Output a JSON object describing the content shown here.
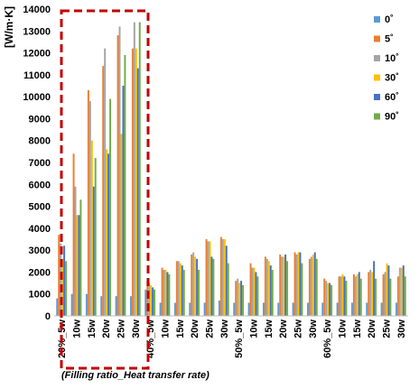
{
  "chart_data": {
    "type": "bar",
    "ylabel": "[W/m·K]",
    "xlabel": "(Filling ratio_Heat transfer rate)",
    "ylim": [
      0,
      14000
    ],
    "yticks": [
      0,
      1000,
      2000,
      3000,
      4000,
      5000,
      6000,
      7000,
      8000,
      9000,
      10000,
      11000,
      12000,
      13000,
      14000
    ],
    "grid": false,
    "legend_position": "right",
    "categories": [
      "20%_5w",
      "10w",
      "15w",
      "20w",
      "25w",
      "30w",
      "40%_5w",
      "10w",
      "15w",
      "20w",
      "25w",
      "30w",
      "50%_5w",
      "10w",
      "15w",
      "20w",
      "25w",
      "30w",
      "60%_5w",
      "10w",
      "15w",
      "20w",
      "25w",
      "30w"
    ],
    "series": [
      {
        "name": "0˚",
        "color": "#5b9bd5",
        "values": [
          800,
          1000,
          1000,
          900,
          900,
          900,
          1200,
          600,
          600,
          600,
          600,
          700,
          600,
          600,
          600,
          600,
          600,
          600,
          600,
          600,
          600,
          600,
          600,
          600
        ]
      },
      {
        "name": "5˚",
        "color": "#ed7d31",
        "values": [
          3700,
          7400,
          10300,
          11400,
          12800,
          12200,
          1600,
          2200,
          2500,
          2800,
          3500,
          3600,
          1600,
          2400,
          2700,
          2800,
          2900,
          2600,
          1700,
          1800,
          1900,
          2000,
          1900,
          1800
        ]
      },
      {
        "name": "10˚",
        "color": "#a5a5a5",
        "values": [
          3300,
          5900,
          9800,
          12200,
          13200,
          13400,
          1500,
          2100,
          2500,
          2900,
          3400,
          3500,
          1700,
          2200,
          2600,
          2700,
          2800,
          2700,
          1600,
          1800,
          1800,
          2100,
          2000,
          2200
        ]
      },
      {
        "name": "30˚",
        "color": "#ffc000",
        "values": [
          2600,
          4600,
          8000,
          7600,
          8300,
          12200,
          1400,
          2100,
          2400,
          2700,
          3400,
          3500,
          1500,
          2200,
          2500,
          2700,
          2900,
          2800,
          1500,
          1900,
          1900,
          2000,
          2400,
          2200
        ]
      },
      {
        "name": "60˚",
        "color": "#4472c4",
        "values": [
          3200,
          4600,
          5900,
          7400,
          10500,
          11300,
          1300,
          2000,
          2300,
          2600,
          2700,
          3200,
          1600,
          2000,
          2300,
          2800,
          2900,
          2900,
          1500,
          1800,
          2000,
          2500,
          2300,
          2300
        ]
      },
      {
        "name": "90˚",
        "color": "#70ad47",
        "values": [
          2500,
          5300,
          7200,
          9900,
          11900,
          13400,
          1200,
          1900,
          2100,
          2100,
          2600,
          2400,
          1400,
          1800,
          2100,
          2500,
          2400,
          2600,
          1400,
          1600,
          1700,
          1700,
          1700,
          1800
        ]
      }
    ]
  }
}
